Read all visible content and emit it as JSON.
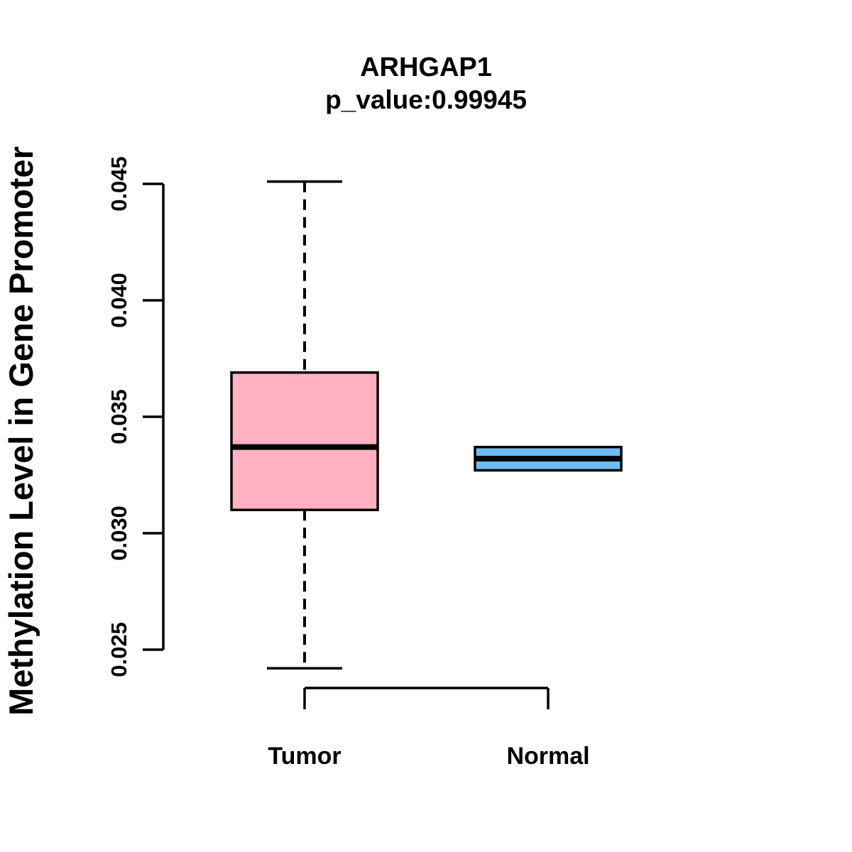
{
  "chart_data": {
    "type": "boxplot",
    "title": "ARHGAP1",
    "subtitle": "p_value:0.99945",
    "ylabel": "Methylation Level in Gene Promoter",
    "xlabel": "",
    "ylim": [
      0.0242,
      0.0451
    ],
    "yticks": [
      0.025,
      0.03,
      0.035,
      0.04,
      0.045
    ],
    "ytick_labels": [
      "0.025",
      "0.030",
      "0.035",
      "0.040",
      "0.045"
    ],
    "grid": "off",
    "legend": "none",
    "groups": [
      {
        "label": "Tumor",
        "color": "#FFB1C1",
        "whisker_low": 0.0242,
        "q1": 0.031,
        "median": 0.0337,
        "q3": 0.0369,
        "whisker_high": 0.0451
      },
      {
        "label": "Normal",
        "color": "#6FBCF2",
        "whisker_low": 0.0327,
        "q1": 0.0327,
        "median": 0.0332,
        "q3": 0.0337,
        "whisker_high": 0.0337
      }
    ],
    "stroke_color": "#000000"
  }
}
